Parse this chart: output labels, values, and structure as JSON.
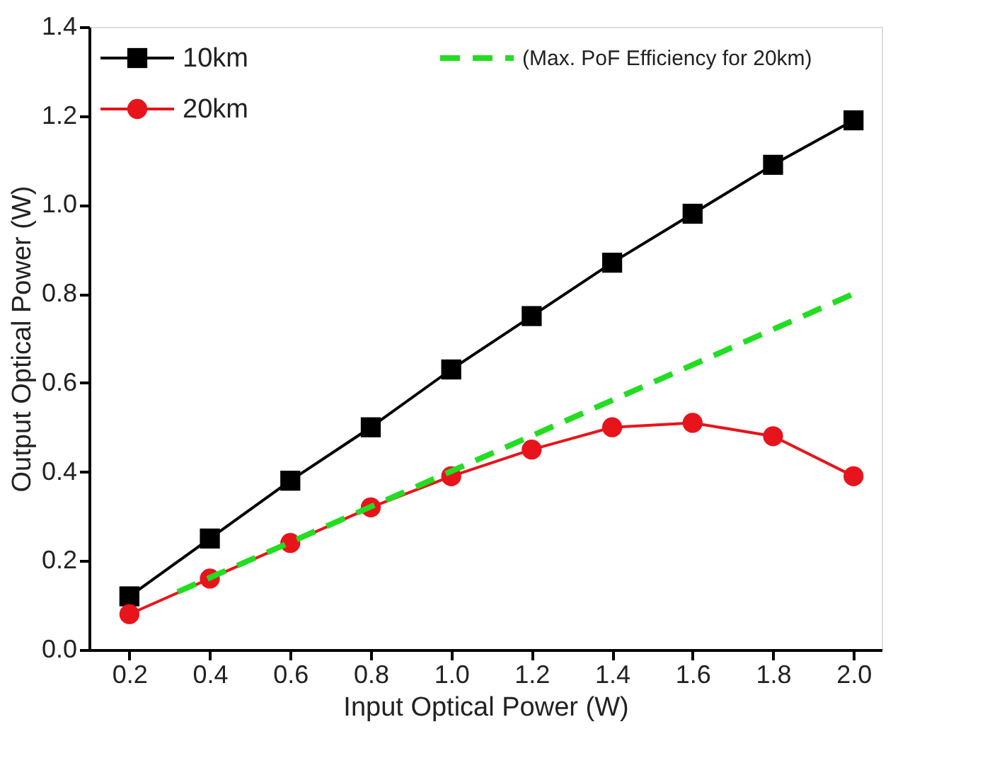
{
  "chart_data": {
    "type": "line",
    "xlabel": "Input Optical Power (W)",
    "ylabel": "Output Optical Power (W)",
    "x": [
      0.2,
      0.4,
      0.6,
      0.8,
      1.0,
      1.2,
      1.4,
      1.6,
      1.8,
      2.0
    ],
    "series": [
      {
        "name": "10km",
        "color": "#000000",
        "marker": "square",
        "line_style": "solid",
        "values": [
          0.12,
          0.25,
          0.38,
          0.5,
          0.63,
          0.75,
          0.87,
          0.98,
          1.09,
          1.19
        ]
      },
      {
        "name": "20km",
        "color": "#e8141b",
        "marker": "circle",
        "line_style": "solid",
        "values": [
          0.08,
          0.16,
          0.24,
          0.32,
          0.39,
          0.45,
          0.5,
          0.51,
          0.48,
          0.39
        ]
      },
      {
        "name": "(Max. PoF Efficiency for 20km)",
        "color": "#22dd22",
        "marker": "none",
        "line_style": "dashed",
        "x": [
          0.32,
          2.0
        ],
        "values": [
          0.13,
          0.8
        ]
      }
    ],
    "xlim": [
      0.1,
      2.07
    ],
    "ylim": [
      0,
      1.4
    ],
    "xticks": [
      0.2,
      0.4,
      0.6,
      0.8,
      {
        "value": 1,
        "label": "1.0"
      },
      1.2,
      1.4,
      1.6,
      1.8,
      {
        "value": 2,
        "label": "2.0"
      }
    ],
    "yticks": [
      {
        "value": 0,
        "label": "0.0"
      },
      0.2,
      0.4,
      0.6,
      0.8,
      {
        "value": 1,
        "label": "1.0"
      },
      1.2,
      1.4
    ],
    "grid": false,
    "legend": "top left"
  }
}
